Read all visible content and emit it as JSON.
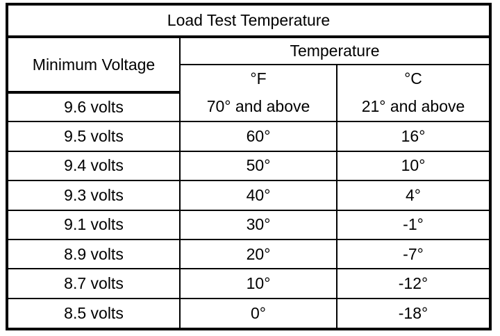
{
  "table": {
    "title": "Load Test Temperature",
    "header": {
      "voltage": "Minimum Voltage",
      "temperature": "Temperature",
      "fahrenheit": "°F",
      "celsius": "°C"
    },
    "rows": [
      {
        "voltage": "9.6 volts",
        "f": "70° and above",
        "c": "21° and above"
      },
      {
        "voltage": "9.5 volts",
        "f": "60°",
        "c": "16°"
      },
      {
        "voltage": "9.4 volts",
        "f": "50°",
        "c": "10°"
      },
      {
        "voltage": "9.3 volts",
        "f": "40°",
        "c": "4°"
      },
      {
        "voltage": "9.1 volts",
        "f": "30°",
        "c": "-1°"
      },
      {
        "voltage": "8.9 volts",
        "f": "20°",
        "c": "-7°"
      },
      {
        "voltage": "8.7 volts",
        "f": "10°",
        "c": "-12°"
      },
      {
        "voltage": "8.5 volts",
        "f": "0°",
        "c": "-18°"
      }
    ]
  }
}
